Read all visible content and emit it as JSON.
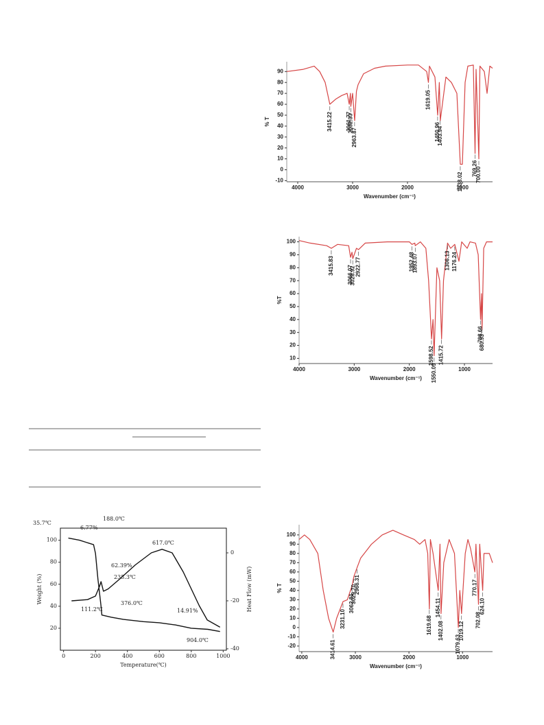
{
  "chart_data": [
    {
      "type": "line",
      "ylabel": "% T",
      "xlabel": "Wavenumber (cm⁻¹)",
      "xlim": [
        4200,
        450
      ],
      "ylim": [
        -11,
        99
      ],
      "xticks": [
        4000,
        3000,
        2000,
        1000
      ],
      "yticks": [
        90,
        80,
        70,
        60,
        50,
        40,
        30,
        20,
        10,
        0,
        -10
      ],
      "series": [
        {
          "color": "#d64545",
          "x": [
            4200,
            3900,
            3700,
            3600,
            3500,
            3415,
            3300,
            3200,
            3100,
            3061,
            3040,
            3032,
            3000,
            2963,
            2930,
            2900,
            2800,
            2600,
            2400,
            2000,
            1800,
            1650,
            1619,
            1600,
            1500,
            1450,
            1420,
            1403,
            1300,
            1200,
            1100,
            1038,
            1000,
            950,
            900,
            800,
            769,
            750,
            700,
            680,
            600,
            550,
            500,
            450
          ],
          "values": [
            90,
            92,
            95,
            90,
            80,
            60,
            65,
            68,
            70,
            60,
            70,
            58,
            70,
            45,
            72,
            78,
            88,
            93,
            95,
            96,
            96,
            90,
            80,
            95,
            85,
            50,
            80,
            45,
            85,
            80,
            70,
            5,
            5,
            80,
            95,
            96,
            15,
            92,
            10,
            95,
            90,
            70,
            95,
            93
          ]
        }
      ],
      "peaks": [
        {
          "value": 3415.22,
          "label": "3415.22"
        },
        {
          "value": 3061.77,
          "label": "3061.77"
        },
        {
          "value": 3032.33,
          "label": "3032.33"
        },
        {
          "value": 2963.87,
          "label": "2963.87"
        },
        {
          "value": 1619.05,
          "label": "1619.05"
        },
        {
          "value": 1450.96,
          "label": "1450.96"
        },
        {
          "value": 1403.94,
          "label": "1403.94"
        },
        {
          "value": 1038.02,
          "label": "1038.02"
        },
        {
          "value": 769.26,
          "label": "769.26"
        },
        {
          "value": 700.0,
          "label": "700.00"
        }
      ]
    },
    {
      "type": "line",
      "ylabel": "%T",
      "xlabel": "Wavenumber (cm⁻¹)",
      "xlim": [
        4000,
        490
      ],
      "ylim": [
        6,
        104
      ],
      "xticks": [
        4000,
        3000,
        2000,
        1000
      ],
      "yticks": [
        100,
        90,
        80,
        70,
        60,
        50,
        40,
        30,
        20,
        10
      ],
      "series": [
        {
          "color": "#d64545",
          "x": [
            4000,
            3800,
            3500,
            3415,
            3300,
            3100,
            3066,
            3040,
            3026,
            2960,
            2922,
            2800,
            2400,
            2000,
            1952,
            1900,
            1893,
            1800,
            1700,
            1650,
            1598,
            1570,
            1550,
            1500,
            1450,
            1415,
            1380,
            1306,
            1250,
            1176,
            1100,
            1050,
            950,
            900,
            800,
            750,
            708,
            690,
            680,
            650,
            600,
            490
          ],
          "values": [
            101,
            99,
            97,
            95,
            98,
            97,
            88,
            92,
            87,
            95,
            94,
            99,
            100,
            100,
            98,
            99,
            97,
            100,
            95,
            70,
            25,
            40,
            12,
            80,
            70,
            25,
            70,
            99,
            95,
            98,
            85,
            100,
            95,
            100,
            99,
            90,
            40,
            60,
            32,
            95,
            100,
            100
          ]
        }
      ],
      "peaks": [
        {
          "value": 3415.83,
          "label": "3415.83"
        },
        {
          "value": 3066.07,
          "label": "3066.07"
        },
        {
          "value": 3026.92,
          "label": "3026.92"
        },
        {
          "value": 2922.77,
          "label": "2922.77"
        },
        {
          "value": 1952.48,
          "label": "1952.48"
        },
        {
          "value": 1893.07,
          "label": "1893.07"
        },
        {
          "value": 1598.52,
          "label": "1598.52"
        },
        {
          "value": 1550.09,
          "label": "1550.09"
        },
        {
          "value": 1415.72,
          "label": "1415.72"
        },
        {
          "value": 1306.13,
          "label": "1306.13"
        },
        {
          "value": 1176.24,
          "label": "1176.24"
        },
        {
          "value": 708.66,
          "label": "708.66"
        },
        {
          "value": 680.93,
          "label": "680.93"
        }
      ]
    },
    {
      "type": "line",
      "ylabel": "% T",
      "xlabel": "Wavenumber (cm⁻¹)",
      "xlim": [
        4050,
        440
      ],
      "ylim": [
        -26,
        111
      ],
      "xticks": [
        4000,
        3000,
        2000,
        1000
      ],
      "yticks": [
        100,
        90,
        80,
        70,
        60,
        50,
        40,
        30,
        20,
        10,
        0,
        -10,
        -20
      ],
      "series": [
        {
          "color": "#d64545",
          "x": [
            4050,
            3950,
            3850,
            3700,
            3600,
            3500,
            3414,
            3350,
            3231,
            3150,
            3062,
            3029,
            2966,
            2900,
            2700,
            2500,
            2300,
            2100,
            1900,
            1800,
            1700,
            1650,
            1619,
            1600,
            1550,
            1454,
            1420,
            1402,
            1350,
            1250,
            1150,
            1079,
            1050,
            1019,
            950,
            900,
            850,
            770,
            750,
            702,
            680,
            624,
            600,
            500,
            440
          ],
          "values": [
            95,
            100,
            95,
            80,
            40,
            10,
            -5,
            10,
            28,
            30,
            45,
            55,
            65,
            75,
            90,
            100,
            105,
            100,
            95,
            90,
            95,
            80,
            20,
            95,
            80,
            40,
            90,
            15,
            70,
            95,
            80,
            0,
            40,
            15,
            80,
            95,
            85,
            60,
            90,
            25,
            90,
            40,
            80,
            80,
            70
          ]
        }
      ],
      "peaks": [
        {
          "value": 3414.61,
          "label": "3414.61"
        },
        {
          "value": 3231.1,
          "label": "3231.10"
        },
        {
          "value": 3062.81,
          "label": "3062.81"
        },
        {
          "value": 3029.7,
          "label": "3029.70"
        },
        {
          "value": 2966.31,
          "label": "2966.31"
        },
        {
          "value": 1619.68,
          "label": "1619.68"
        },
        {
          "value": 1454.11,
          "label": "1454.11"
        },
        {
          "value": 1402.08,
          "label": "1402.08"
        },
        {
          "value": 1079.63,
          "label": "1079.63"
        },
        {
          "value": 1019.12,
          "label": "1019.12"
        },
        {
          "value": 770.17,
          "label": "770.17"
        },
        {
          "value": 702.08,
          "label": "702.08"
        },
        {
          "value": 624.1,
          "label": "624.10"
        }
      ]
    },
    {
      "type": "line",
      "ylabel": "Weight (%)",
      "y2label": "Heat Flow (mW)",
      "xlabel": "Temperature(℃)",
      "xlim": [
        -20,
        1020
      ],
      "ylim": [
        0,
        111
      ],
      "y2lim": [
        -40.6,
        10.3
      ],
      "xticks": [
        0,
        200,
        400,
        600,
        800,
        1000
      ],
      "yticks": [
        20,
        40,
        60,
        80,
        100
      ],
      "y2ticks": [
        0,
        -20,
        -40
      ],
      "series": [
        {
          "color": "#111111",
          "x": [
            30,
            100,
            188,
            200,
            215,
            235,
            240,
            300,
            376,
            500,
            600,
            700,
            800,
            904,
            980
          ],
          "values": [
            102,
            100,
            96,
            88,
            65,
            40,
            32,
            30,
            28,
            26,
            25,
            23,
            20,
            19,
            17
          ]
        },
        {
          "color": "#111111",
          "axis": "y2",
          "x": [
            50,
            150,
            200,
            225,
            235,
            250,
            280,
            350,
            450,
            550,
            617,
            680,
            750,
            850,
            900,
            980
          ],
          "values": [
            -20,
            -19.5,
            -18,
            -14,
            -12,
            -16,
            -15,
            -11,
            -5,
            0,
            1.5,
            0,
            -8,
            -22,
            -28,
            -31
          ]
        }
      ],
      "annotations": [
        "35.7℃",
        "6.77%",
        "188.0℃",
        "617.0℃",
        "62.39%",
        "235.3℃",
        "111.2℃",
        "376.0℃",
        "14.91%",
        "904.0℃"
      ]
    }
  ]
}
